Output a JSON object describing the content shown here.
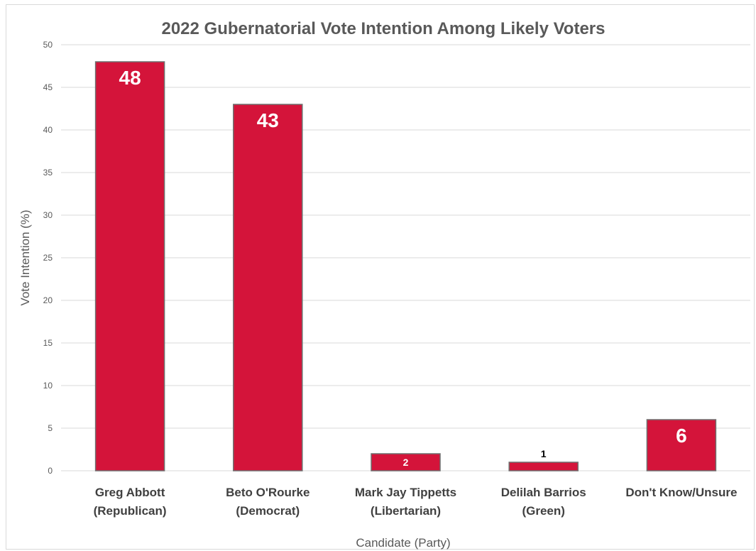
{
  "chart_data": {
    "type": "bar",
    "title": "2022 Gubernatorial Vote Intention Among Likely Voters",
    "xlabel": "Candidate (Party)",
    "ylabel": "Vote Intention (%)",
    "ylim": [
      0,
      50
    ],
    "yticks": [
      0,
      5,
      10,
      15,
      20,
      25,
      30,
      35,
      40,
      45,
      50
    ],
    "grid": true,
    "legend": "none",
    "bar_color": "#d4143a",
    "categories": [
      [
        "Greg Abbott",
        "(Republican)"
      ],
      [
        "Beto O'Rourke",
        "(Democrat)"
      ],
      [
        "Mark Jay Tippetts",
        "(Libertarian)"
      ],
      [
        "Delilah Barrios",
        "(Green)"
      ],
      [
        "Don't Know/Unsure"
      ]
    ],
    "values": [
      48,
      43,
      2,
      1,
      6
    ],
    "data_labels": [
      "48",
      "43",
      "2",
      "1",
      "6"
    ]
  }
}
